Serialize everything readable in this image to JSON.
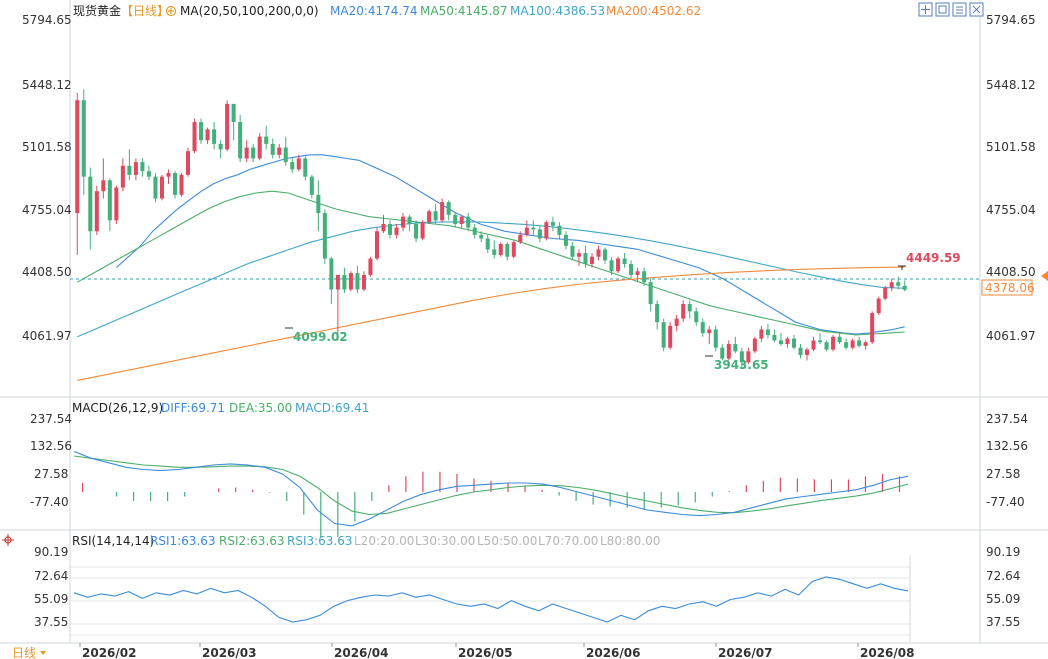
{
  "colors": {
    "up": "#dd4a5f",
    "down": "#43b07c",
    "ma20": "#3d8bd8",
    "ma50": "#4cae6a",
    "ma100": "#41a6c8",
    "ma200": "#f08a3a",
    "diff": "#3d8bd8",
    "dea": "#4cae6a",
    "rsi": "#3d8bd8",
    "last": "#f08a3a"
  },
  "price_panel": {
    "instrument": "现货黄金",
    "period": "【日线】",
    "ma_label": "MA(20,50,100,200,0,0)",
    "ma20": "MA20:4174.74",
    "ma50": "MA50:4145.87",
    "ma100": "MA100:4386.53",
    "ma200": "MA200:4502.62",
    "left_ticks": [
      "5794.65",
      "5448.12",
      "5101.58",
      "4755.04",
      "4408.50",
      "4061.97"
    ],
    "right_ticks": [
      "5794.65",
      "5448.12",
      "5101.58",
      "4755.04",
      "4408.50",
      "4061.97"
    ],
    "last_price": "4378.06",
    "annotations": {
      "high": "4449.59",
      "low1": "4099.02",
      "low2": "3943.65"
    }
  },
  "macd_panel": {
    "title": "MACD(26,12,9)",
    "diff": "DIFF:69.71",
    "dea": "DEA:35.00",
    "macd": "MACD:69.41",
    "left_ticks": [
      "237.54",
      "132.56",
      "27.58",
      "-77.40"
    ],
    "right_ticks": [
      "237.54",
      "132.56",
      "27.58",
      "-77.40"
    ]
  },
  "rsi_panel": {
    "title": "RSI(14,14,14)",
    "rsi1": "RSI1:63.63",
    "rsi2": "RSI2:63.63",
    "rsi3": "RSI3:63.63",
    "l20": "L20:20.00",
    "l30": "L30:30.00",
    "l50": "L50:50.00",
    "l70": "L70:70.00",
    "l80": "L80:80.00",
    "left_ticks": [
      "90.19",
      "72.64",
      "55.09",
      "37.55"
    ],
    "right_ticks": [
      "90.19",
      "72.64",
      "55.09",
      "37.55"
    ]
  },
  "bottom_bar": {
    "period_selector": "日线",
    "x_ticks": [
      "2026/02",
      "2026/03",
      "2026/04",
      "2026/05",
      "2026/06",
      "2026/07",
      "2026/08"
    ]
  },
  "toolbar": {
    "icons": [
      "crosshair-icon",
      "zoom-icon",
      "fullscreen-icon",
      "settings-icon"
    ]
  },
  "chart_data": {
    "type": "candlestick",
    "title": "现货黄金 【日线】",
    "x_ticks": [
      "2026/02",
      "2026/03",
      "2026/04",
      "2026/05",
      "2026/06",
      "2026/07",
      "2026/08"
    ],
    "y_range": [
      3800,
      5850
    ],
    "candles": [
      [
        4800,
        5460,
        4570,
        5420
      ],
      [
        5420,
        5480,
        4900,
        5000
      ],
      [
        5000,
        5050,
        4600,
        4700
      ],
      [
        4700,
        4950,
        4680,
        4920
      ],
      [
        4920,
        5100,
        4880,
        4980
      ],
      [
        4980,
        4990,
        4700,
        4760
      ],
      [
        4760,
        4950,
        4740,
        4940
      ],
      [
        4940,
        5100,
        4920,
        5060
      ],
      [
        5060,
        5150,
        4980,
        5010
      ],
      [
        5010,
        5100,
        4980,
        5080
      ],
      [
        5080,
        5100,
        5000,
        5030
      ],
      [
        5030,
        5060,
        4980,
        5000
      ],
      [
        5000,
        5020,
        4860,
        4880
      ],
      [
        4880,
        5010,
        4870,
        5000
      ],
      [
        5000,
        5040,
        4960,
        5020
      ],
      [
        5020,
        5030,
        4880,
        4900
      ],
      [
        4900,
        5020,
        4890,
        5010
      ],
      [
        5010,
        5160,
        5000,
        5140
      ],
      [
        5140,
        5320,
        5130,
        5300
      ],
      [
        5300,
        5320,
        5180,
        5200
      ],
      [
        5200,
        5270,
        5180,
        5260
      ],
      [
        5260,
        5300,
        5150,
        5180
      ],
      [
        5180,
        5200,
        5100,
        5150
      ],
      [
        5150,
        5420,
        5140,
        5400
      ],
      [
        5400,
        5380,
        5200,
        5300
      ],
      [
        5300,
        5340,
        5080,
        5100
      ],
      [
        5100,
        5200,
        5080,
        5160
      ],
      [
        5160,
        5180,
        5080,
        5100
      ],
      [
        5100,
        5240,
        5090,
        5220
      ],
      [
        5220,
        5280,
        5150,
        5180
      ],
      [
        5180,
        5210,
        5100,
        5120
      ],
      [
        5120,
        5180,
        5100,
        5160
      ],
      [
        5160,
        5220,
        5060,
        5080
      ],
      [
        5080,
        5100,
        5020,
        5040
      ],
      [
        5040,
        5120,
        5030,
        5100
      ],
      [
        5100,
        5110,
        4980,
        5000
      ],
      [
        5000,
        5010,
        4880,
        4900
      ],
      [
        4900,
        4980,
        4700,
        4800
      ],
      [
        4800,
        4820,
        4520,
        4550
      ],
      [
        4550,
        4560,
        4300,
        4380
      ],
      [
        4380,
        4440,
        4099,
        4460
      ],
      [
        4460,
        4500,
        4360,
        4380
      ],
      [
        4380,
        4480,
        4370,
        4470
      ],
      [
        4470,
        4510,
        4360,
        4380
      ],
      [
        4380,
        4480,
        4370,
        4460
      ],
      [
        4460,
        4560,
        4450,
        4550
      ],
      [
        4550,
        4720,
        4540,
        4700
      ],
      [
        4700,
        4790,
        4690,
        4740
      ],
      [
        4740,
        4760,
        4660,
        4680
      ],
      [
        4680,
        4740,
        4660,
        4720
      ],
      [
        4720,
        4800,
        4700,
        4780
      ],
      [
        4780,
        4790,
        4700,
        4740
      ],
      [
        4740,
        4760,
        4640,
        4660
      ],
      [
        4660,
        4760,
        4650,
        4750
      ],
      [
        4750,
        4820,
        4740,
        4810
      ],
      [
        4810,
        4850,
        4740,
        4760
      ],
      [
        4760,
        4880,
        4750,
        4860
      ],
      [
        4860,
        4870,
        4760,
        4790
      ],
      [
        4790,
        4800,
        4720,
        4740
      ],
      [
        4740,
        4790,
        4720,
        4780
      ],
      [
        4780,
        4800,
        4700,
        4720
      ],
      [
        4720,
        4740,
        4660,
        4680
      ],
      [
        4680,
        4700,
        4640,
        4660
      ],
      [
        4660,
        4680,
        4580,
        4600
      ],
      [
        4600,
        4650,
        4550,
        4570
      ],
      [
        4570,
        4640,
        4560,
        4630
      ],
      [
        4630,
        4640,
        4540,
        4560
      ],
      [
        4560,
        4650,
        4550,
        4640
      ],
      [
        4640,
        4700,
        4630,
        4680
      ],
      [
        4680,
        4760,
        4670,
        4720
      ],
      [
        4720,
        4760,
        4680,
        4710
      ],
      [
        4710,
        4730,
        4640,
        4660
      ],
      [
        4660,
        4760,
        4650,
        4750
      ],
      [
        4750,
        4780,
        4700,
        4730
      ],
      [
        4730,
        4750,
        4660,
        4680
      ],
      [
        4680,
        4700,
        4600,
        4620
      ],
      [
        4620,
        4640,
        4540,
        4560
      ],
      [
        4560,
        4600,
        4510,
        4580
      ],
      [
        4580,
        4620,
        4500,
        4520
      ],
      [
        4520,
        4580,
        4500,
        4560
      ],
      [
        4560,
        4620,
        4540,
        4600
      ],
      [
        4600,
        4610,
        4520,
        4540
      ],
      [
        4540,
        4560,
        4460,
        4480
      ],
      [
        4480,
        4560,
        4470,
        4550
      ],
      [
        4550,
        4580,
        4500,
        4520
      ],
      [
        4520,
        4540,
        4440,
        4460
      ],
      [
        4460,
        4500,
        4420,
        4480
      ],
      [
        4480,
        4500,
        4400,
        4420
      ],
      [
        4420,
        4440,
        4260,
        4300
      ],
      [
        4300,
        4320,
        4160,
        4200
      ],
      [
        4200,
        4220,
        4040,
        4060
      ],
      [
        4060,
        4200,
        4050,
        4180
      ],
      [
        4180,
        4240,
        4150,
        4220
      ],
      [
        4220,
        4320,
        4200,
        4300
      ],
      [
        4300,
        4320,
        4220,
        4260
      ],
      [
        4260,
        4280,
        4180,
        4200
      ],
      [
        4200,
        4220,
        4120,
        4140
      ],
      [
        4140,
        4180,
        4080,
        4160
      ],
      [
        4160,
        4180,
        4040,
        4060
      ],
      [
        4060,
        4080,
        3990,
        4000
      ],
      [
        4000,
        4100,
        3990,
        4080
      ],
      [
        4080,
        4120,
        4030,
        4040
      ],
      [
        4040,
        4060,
        3944,
        3980
      ],
      [
        3980,
        4060,
        3970,
        4040
      ],
      [
        4040,
        4120,
        4030,
        4110
      ],
      [
        4110,
        4180,
        4090,
        4160
      ],
      [
        4160,
        4190,
        4110,
        4130
      ],
      [
        4130,
        4160,
        4090,
        4100
      ],
      [
        4100,
        4140,
        4070,
        4080
      ],
      [
        4080,
        4120,
        4060,
        4110
      ],
      [
        4110,
        4130,
        4050,
        4060
      ],
      [
        4060,
        4080,
        4000,
        4020
      ],
      [
        4020,
        4060,
        3990,
        4050
      ],
      [
        4050,
        4120,
        4040,
        4100
      ],
      [
        4100,
        4140,
        4080,
        4090
      ],
      [
        4090,
        4100,
        4040,
        4050
      ],
      [
        4050,
        4130,
        4040,
        4120
      ],
      [
        4120,
        4140,
        4080,
        4090
      ],
      [
        4090,
        4110,
        4050,
        4060
      ],
      [
        4060,
        4110,
        4050,
        4100
      ],
      [
        4100,
        4120,
        4060,
        4070
      ],
      [
        4070,
        4100,
        4050,
        4090
      ],
      [
        4090,
        4260,
        4080,
        4250
      ],
      [
        4250,
        4340,
        4240,
        4330
      ],
      [
        4330,
        4400,
        4320,
        4390
      ],
      [
        4390,
        4440,
        4370,
        4420
      ],
      [
        4420,
        4450,
        4380,
        4400
      ],
      [
        4400,
        4430,
        4370,
        4378
      ]
    ],
    "ma_series": [
      {
        "name": "MA20",
        "start": 6,
        "values": [
          4500,
          4560,
          4620,
          4700,
          4760,
          4820,
          4870,
          4920,
          4960,
          4990,
          5010,
          5040,
          5060,
          5080,
          5100,
          5110,
          5120,
          5120,
          5110,
          5100,
          5090,
          5060,
          5030,
          5000,
          4960,
          4920,
          4880,
          4840,
          4800,
          4770,
          4740,
          4720,
          4700,
          4690,
          4680,
          4670,
          4660,
          4655,
          4650,
          4640,
          4630,
          4620,
          4610,
          4600,
          4580,
          4560,
          4540,
          4520,
          4500,
          4470,
          4440,
          4400,
          4360,
          4320,
          4280,
          4240,
          4200,
          4180,
          4160,
          4150,
          4140,
          4135,
          4140,
          4150,
          4160,
          4175
        ]
      },
      {
        "name": "MA50",
        "start": 0,
        "values": [
          4420,
          4470,
          4520,
          4570,
          4620,
          4670,
          4720,
          4770,
          4820,
          4860,
          4890,
          4910,
          4920,
          4910,
          4880,
          4850,
          4820,
          4800,
          4780,
          4770,
          4760,
          4750,
          4740,
          4730,
          4710,
          4690,
          4670,
          4650,
          4620,
          4590,
          4560,
          4530,
          4500,
          4470,
          4440,
          4410,
          4380,
          4350,
          4320,
          4290,
          4270,
          4250,
          4230,
          4210,
          4190,
          4170,
          4150,
          4140,
          4130,
          4135,
          4140,
          4146
        ]
      },
      {
        "name": "MA100",
        "start": 0,
        "values": [
          4120,
          4170,
          4220,
          4270,
          4320,
          4370,
          4420,
          4470,
          4520,
          4560,
          4600,
          4640,
          4670,
          4700,
          4720,
          4735,
          4745,
          4750,
          4752,
          4750,
          4745,
          4738,
          4728,
          4716,
          4702,
          4686,
          4668,
          4648,
          4626,
          4602,
          4578,
          4552,
          4526,
          4500,
          4474,
          4450,
          4426,
          4406,
          4390,
          4387
        ]
      },
      {
        "name": "MA200",
        "start": 0,
        "values": [
          3880,
          3920,
          3960,
          4000,
          4040,
          4080,
          4120,
          4160,
          4200,
          4240,
          4280,
          4320,
          4355,
          4385,
          4410,
          4430,
          4445,
          4460,
          4472,
          4482,
          4490,
          4496,
          4500,
          4503
        ]
      }
    ],
    "macd": {
      "y_range": [
        -160,
        320
      ],
      "diff": [
        180,
        150,
        130,
        110,
        100,
        95,
        100,
        110,
        120,
        125,
        120,
        110,
        80,
        20,
        -80,
        -140,
        -150,
        -120,
        -80,
        -40,
        -10,
        10,
        25,
        30,
        35,
        40,
        40,
        35,
        20,
        0,
        -20,
        -40,
        -60,
        -80,
        -90,
        -100,
        -105,
        -100,
        -90,
        -70,
        -50,
        -30,
        -20,
        -10,
        0,
        10,
        30,
        55,
        70
      ],
      "dea": [
        160,
        150,
        140,
        130,
        120,
        115,
        110,
        110,
        112,
        115,
        115,
        112,
        100,
        70,
        20,
        -40,
        -85,
        -100,
        -95,
        -75,
        -55,
        -35,
        -15,
        0,
        10,
        20,
        27,
        30,
        28,
        20,
        8,
        -8,
        -25,
        -40,
        -55,
        -70,
        -82,
        -90,
        -92,
        -85,
        -75,
        -62,
        -50,
        -38,
        -28,
        -18,
        -5,
        15,
        35
      ],
      "hist": [
        40,
        0,
        -20,
        -40,
        -40,
        -40,
        -20,
        0,
        16,
        20,
        10,
        -4,
        -40,
        -100,
        -200,
        -200,
        -130,
        -40,
        30,
        70,
        90,
        90,
        80,
        60,
        50,
        40,
        26,
        10,
        -16,
        -40,
        -56,
        -64,
        -70,
        -80,
        -70,
        -60,
        -46,
        -20,
        4,
        30,
        50,
        64,
        60,
        56,
        56,
        56,
        70,
        80,
        70
      ]
    },
    "rsi": {
      "y_range": [
        20,
        100
      ],
      "values": [
        62,
        58,
        61,
        59,
        63,
        57,
        62,
        60,
        64,
        61,
        66,
        62,
        64,
        58,
        50,
        40,
        36,
        38,
        42,
        50,
        55,
        58,
        60,
        59,
        62,
        58,
        60,
        56,
        52,
        50,
        52,
        48,
        55,
        50,
        46,
        52,
        48,
        44,
        40,
        36,
        42,
        38,
        46,
        50,
        48,
        52,
        54,
        50,
        56,
        58,
        62,
        59,
        65,
        60,
        72,
        76,
        74,
        70,
        66,
        70,
        66,
        63.63
      ]
    }
  }
}
